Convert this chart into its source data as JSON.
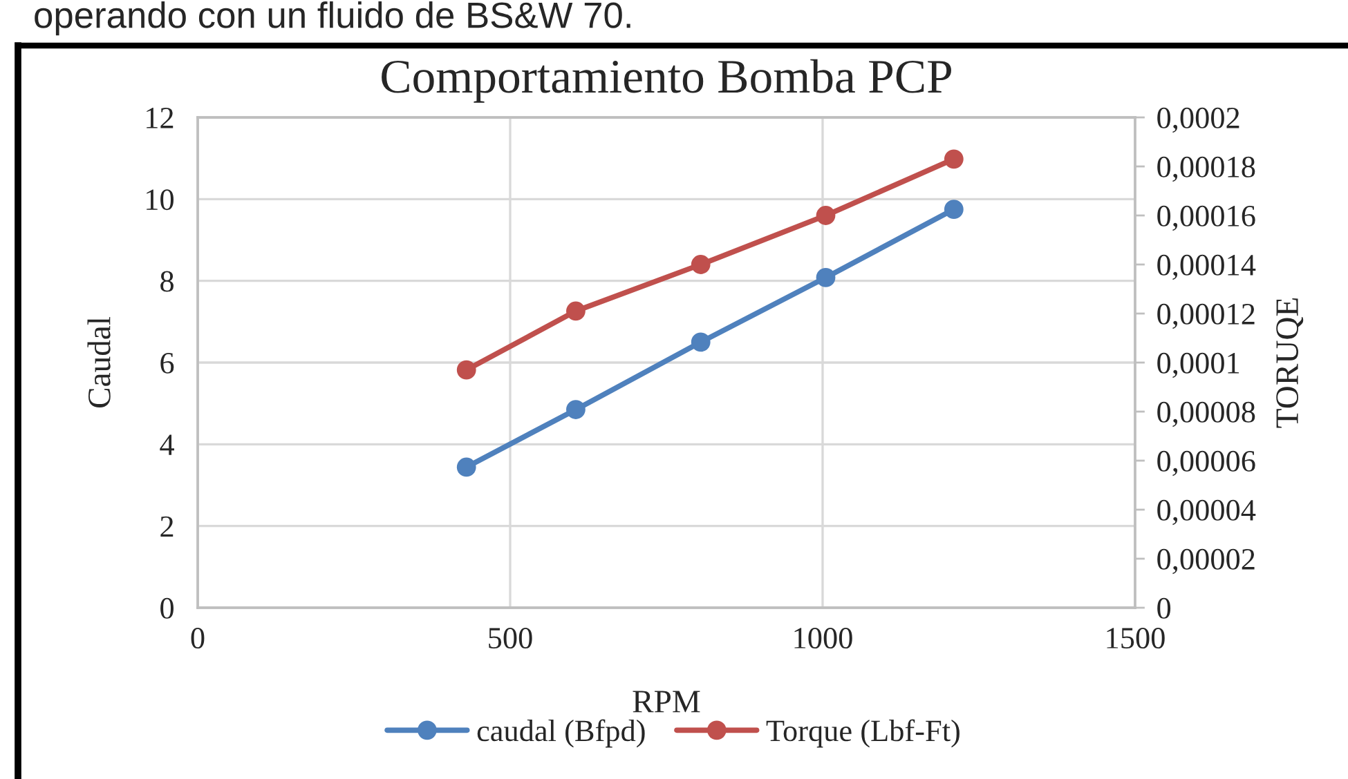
{
  "chart_data": {
    "type": "line",
    "title": "Comportamiento Bomba PCP",
    "xlabel": "RPM",
    "ylabel": "Caudal",
    "y2label": "TORUQE",
    "annotations": [
      "operando con un fluido de BS&W 70."
    ],
    "x": [
      430,
      605,
      805,
      1005,
      1210
    ],
    "series": [
      {
        "name": "caudal (Bfpd)",
        "color": "#4f81bd",
        "values": [
          3.44,
          4.85,
          6.5,
          8.08,
          9.75
        ]
      },
      {
        "name": "Torque (Lbf-Ft)",
        "color": "#c0504d",
        "axis": "y2",
        "values": [
          9.7e-05,
          0.000121,
          0.00014,
          0.00016,
          0.000183
        ]
      }
    ],
    "xlim": [
      0,
      1500
    ],
    "xticks": [
      0,
      500,
      1000,
      1500
    ],
    "ylim": [
      0,
      12
    ],
    "yticks": [
      0,
      2,
      4,
      6,
      8,
      10,
      12
    ],
    "y2lim": [
      0,
      0.0002
    ],
    "y2ticks": [
      0,
      {
        "value": 2e-05,
        "label": "0,00002"
      },
      {
        "value": 4e-05,
        "label": "0,00004"
      },
      {
        "value": 6e-05,
        "label": "0,00006"
      },
      {
        "value": 8e-05,
        "label": "0,00008"
      },
      {
        "value": 0.0001,
        "label": "0,0001"
      },
      {
        "value": 0.00012,
        "label": "0,00012"
      },
      {
        "value": 0.00014,
        "label": "0,00014"
      },
      {
        "value": 0.00016,
        "label": "0,00016"
      },
      {
        "value": 0.00018,
        "label": "0,00018"
      },
      {
        "value": 0.0002,
        "label": "0,0002"
      }
    ],
    "grid": true,
    "legend": "bottom",
    "marker": "circle",
    "line_style": "solid"
  }
}
